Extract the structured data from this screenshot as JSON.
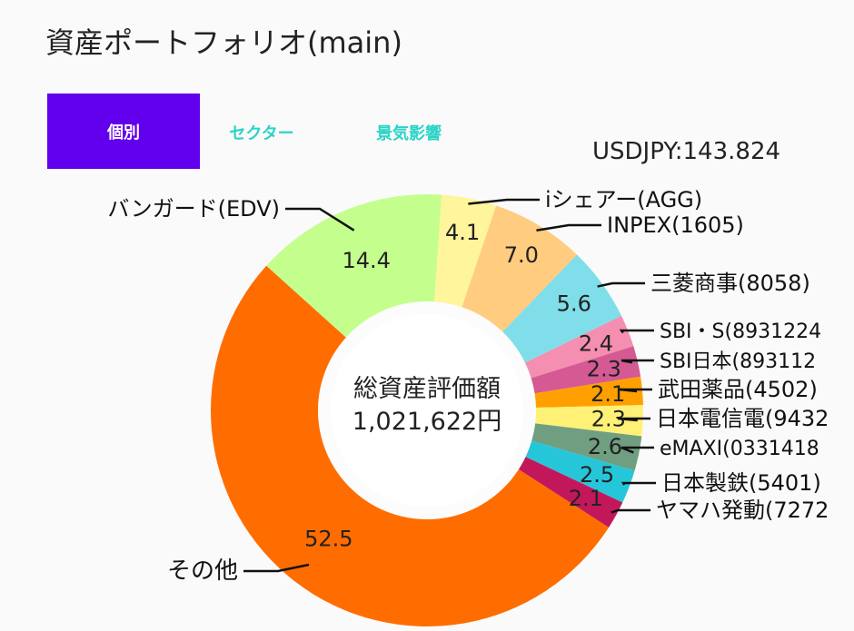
{
  "title": "資産ポートフォリオ(main)",
  "tabs": [
    {
      "label": "個別",
      "active": true
    },
    {
      "label": "セクター",
      "active": false
    },
    {
      "label": "景気影響",
      "active": false
    }
  ],
  "exchange_rate": "USDJPY:143.824",
  "center": {
    "line1": "総資産評価額",
    "line2": "1,021,622円"
  },
  "colors": {
    "accent": "#6200ee",
    "tab_inactive": "#2bd3c7"
  },
  "chart_data": {
    "type": "pie",
    "style": "donut",
    "unit": "%",
    "slices": [
      {
        "name": "バンガード(EDV)",
        "value": 14.4,
        "value_label": "14.4",
        "color": "#c4ff8e"
      },
      {
        "name": "iシェアー(AGG)",
        "value": 4.1,
        "value_label": "4.1",
        "color": "#fff59d"
      },
      {
        "name": "INPEX(1605)",
        "value": 7.0,
        "value_label": "7.0",
        "color": "#ffcc80"
      },
      {
        "name": "三菱商事(8058)",
        "value": 5.6,
        "value_label": "5.6",
        "color": "#80deea"
      },
      {
        "name": "SBI・S(8931224",
        "value": 2.4,
        "value_label": "2.4",
        "color": "#f48fb1"
      },
      {
        "name": "SBI日本(893112",
        "value": 2.3,
        "value_label": "2.3",
        "color": "#d55a93"
      },
      {
        "name": "武田薬品(4502)",
        "value": 2.1,
        "value_label": "2.1",
        "color": "#ffa000"
      },
      {
        "name": "日本電信電(9432",
        "value": 2.3,
        "value_label": "2.3",
        "color": "#fff176"
      },
      {
        "name": "eMAXI(0331418",
        "value": 2.6,
        "value_label": "2.6",
        "color": "#6f9f80"
      },
      {
        "name": "日本製鉄(5401)",
        "value": 2.5,
        "value_label": "2.5",
        "color": "#26c6da"
      },
      {
        "name": "ヤマハ発動(7272",
        "value": 2.1,
        "value_label": "2.1",
        "color": "#c2185b"
      },
      {
        "name": "その他",
        "value": 52.5,
        "value_label": "52.5",
        "color": "#ff6d00"
      }
    ]
  }
}
